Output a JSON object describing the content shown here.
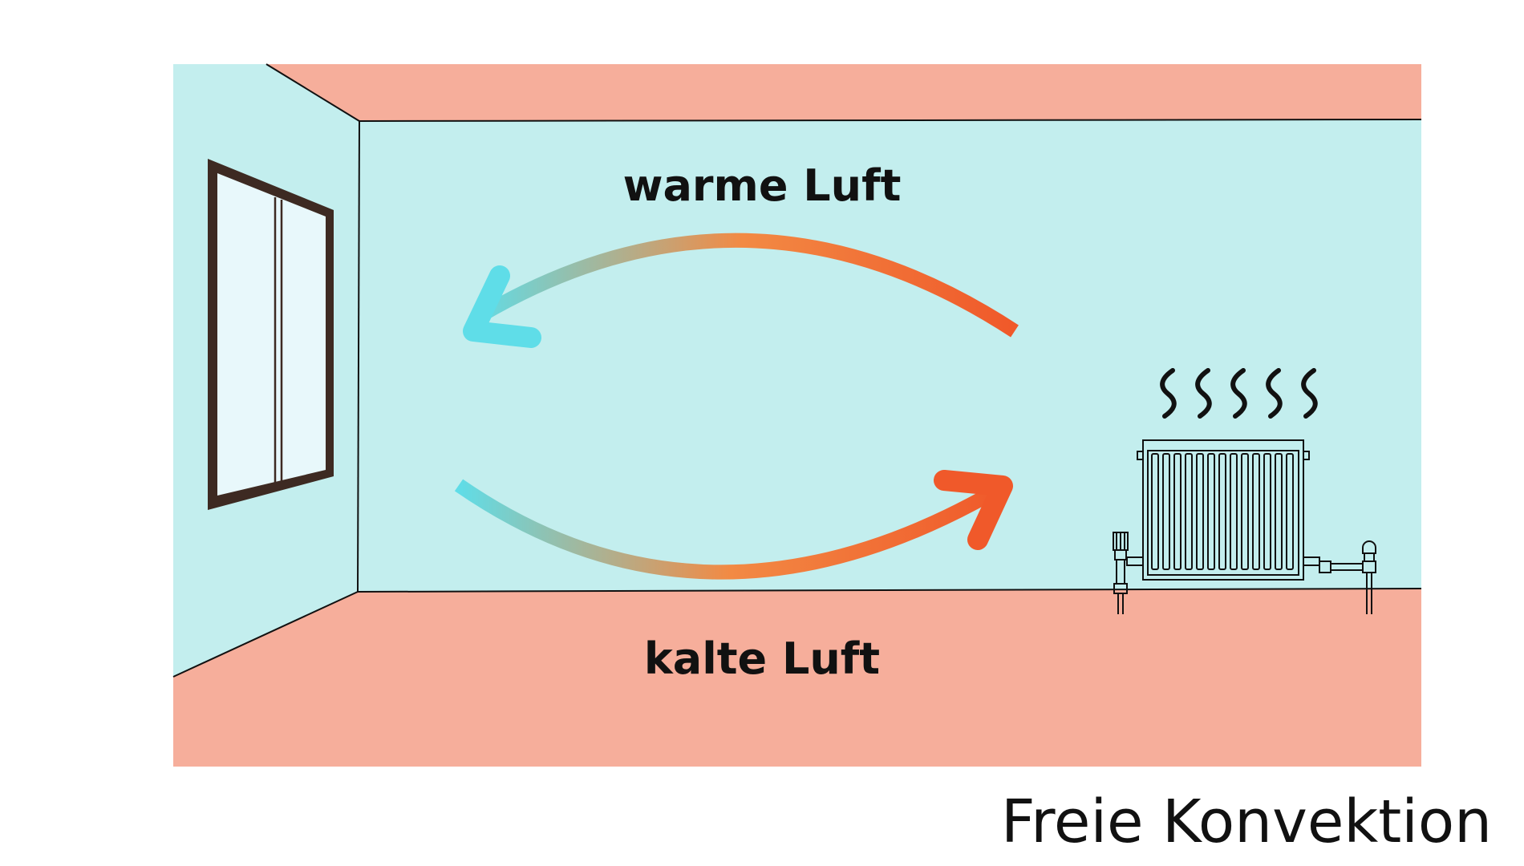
{
  "labels": {
    "warm_air": "warme Luft",
    "cold_air": "kalte Luft"
  },
  "caption": "Freie Konvektion",
  "colors": {
    "wall": "#c3eeee",
    "floor_ceiling": "#f6ae9b",
    "cold": "#5fdde8",
    "warm": "#f0592a",
    "window_frame": "#3d2a22",
    "outline": "#111111"
  },
  "icons": {
    "window": "window-icon",
    "radiator": "radiator-icon",
    "heat_waves": "heat-waves-icon",
    "warm_arrow": "arrow-left-curved-icon",
    "cold_arrow": "arrow-right-curved-icon"
  }
}
